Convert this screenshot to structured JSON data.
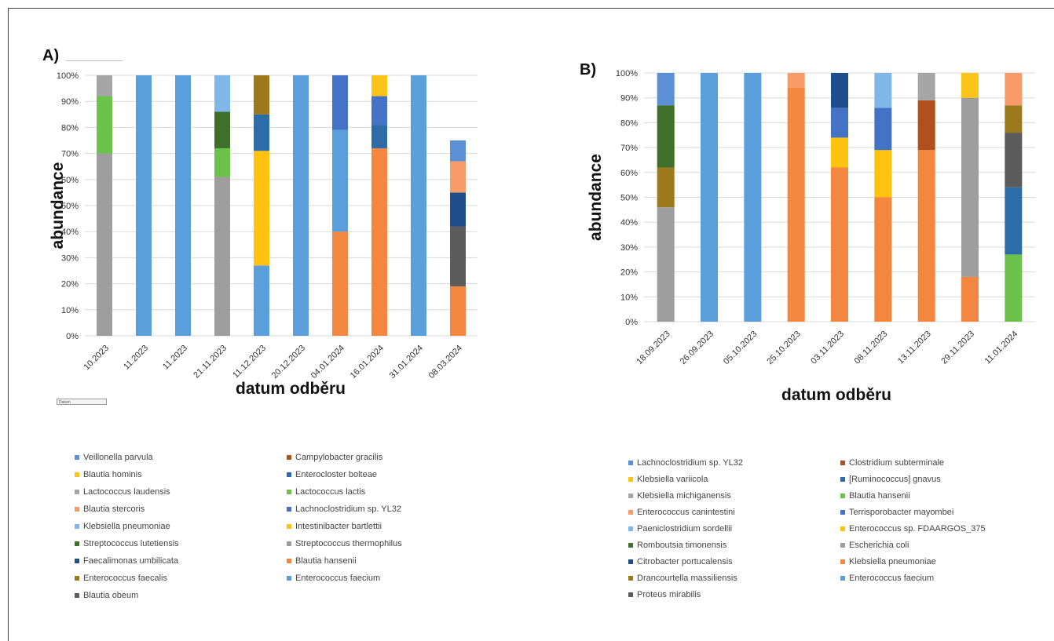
{
  "panels": {
    "a": {
      "label": "A)"
    },
    "b": {
      "label": "B)"
    }
  },
  "filter_label": "Datum",
  "chart_data": [
    {
      "type": "bar",
      "stacked": true,
      "xlabel": "datum odběru",
      "ylabel": "abundance",
      "ylim": [
        0,
        100
      ],
      "yticks": [
        "0%",
        "10%",
        "20%",
        "30%",
        "40%",
        "50%",
        "60%",
        "70%",
        "80%",
        "90%",
        "100%"
      ],
      "tick_labels": [
        "10.2023",
        "11.2023",
        "11.2023",
        "21.11.2023",
        "11.12.2023",
        "20.12.2023",
        "04.01.2024",
        "16.01.2024",
        "31.01.2024",
        "08.03.2024"
      ],
      "categories": [
        "10.2023",
        "11.2023",
        "11.2023",
        "21.11.2023",
        "11.12.2023",
        "20.12.2023",
        "04.01.2024",
        "16.01.2024",
        "31.01.2024",
        "08.03.2024"
      ],
      "series": [
        {
          "name": "Veillonella parvula",
          "color": "#5b8fd6",
          "values": [
            0,
            0,
            0,
            0,
            0,
            0,
            0,
            0,
            0,
            8
          ]
        },
        {
          "name": "Campylobacter gracilis",
          "color": "#b0501f",
          "values": [
            0,
            0,
            0,
            0,
            0,
            0,
            0,
            0,
            0,
            0
          ]
        },
        {
          "name": "Blautia hominis",
          "color": "#fcc419",
          "values": [
            0,
            0,
            0,
            0,
            0,
            0,
            0,
            8,
            0,
            0
          ]
        },
        {
          "name": "Enterocloster bolteae",
          "color": "#2c6da8",
          "values": [
            0,
            0,
            0,
            0,
            14,
            0,
            0,
            9,
            0,
            0
          ]
        },
        {
          "name": "Lactococcus laudensis",
          "color": "#a5a5a5",
          "values": [
            8,
            0,
            0,
            0,
            0,
            0,
            0,
            0,
            0,
            0
          ]
        },
        {
          "name": "Lactococcus lactis",
          "color": "#6cc24a",
          "values": [
            22,
            0,
            0,
            11,
            0,
            0,
            0,
            0,
            0,
            0
          ]
        },
        {
          "name": "Blautia stercoris",
          "color": "#f79c68",
          "values": [
            0,
            0,
            0,
            0,
            0,
            0,
            0,
            0,
            0,
            12
          ]
        },
        {
          "name": "Lachnoclostridium sp. YL32",
          "color": "#4472c4",
          "values": [
            0,
            0,
            0,
            0,
            0,
            0,
            21,
            11,
            0,
            0
          ]
        },
        {
          "name": "Klebsiella pneumoniae",
          "color": "#7fb8e8",
          "values": [
            0,
            0,
            0,
            14,
            0,
            0,
            0,
            0,
            0,
            0
          ]
        },
        {
          "name": "Intestinibacter bartlettii",
          "color": "#ffc20e",
          "values": [
            0,
            0,
            0,
            0,
            44,
            0,
            0,
            0,
            0,
            0
          ]
        },
        {
          "name": "Streptococcus lutetiensis",
          "color": "#3f6f2a",
          "values": [
            0,
            0,
            0,
            14,
            0,
            0,
            0,
            0,
            0,
            0
          ]
        },
        {
          "name": "Streptococcus thermophilus",
          "color": "#9e9e9e",
          "values": [
            70,
            0,
            0,
            61,
            0,
            0,
            0,
            0,
            0,
            0
          ]
        },
        {
          "name": "Faecalimonas umbilicata",
          "color": "#1f4e8c",
          "values": [
            0,
            0,
            0,
            0,
            0,
            0,
            0,
            0,
            0,
            13
          ]
        },
        {
          "name": "Blautia hansenii",
          "color": "#f4873f",
          "values": [
            0,
            0,
            0,
            0,
            0,
            0,
            40,
            72,
            0,
            19
          ]
        },
        {
          "name": "Enterococcus faecalis",
          "color": "#9c7a1c",
          "values": [
            0,
            0,
            0,
            0,
            15,
            0,
            0,
            0,
            0,
            0
          ]
        },
        {
          "name": "Enterococcus faecium",
          "color": "#5a9fdb",
          "values": [
            0,
            100,
            100,
            0,
            27,
            100,
            39,
            0,
            100,
            0
          ]
        },
        {
          "name": "Blautia obeum",
          "color": "#5c5c5c",
          "values": [
            0,
            0,
            0,
            0,
            0,
            0,
            0,
            0,
            0,
            23
          ]
        }
      ],
      "stack_order": [
        "Blautia hansenii",
        "Enterococcus faecium",
        "Streptococcus thermophilus",
        "Lactococcus lactis",
        "Lactococcus laudensis",
        "Intestinibacter bartlettii",
        "Campylobacter gracilis",
        "Blautia obeum",
        "Faecalimonas umbilicata",
        "Enterocloster bolteae",
        "Lachnoclostridium sp. YL32",
        "Streptococcus lutetiensis",
        "Klebsiella pneumoniae",
        "Enterococcus faecalis",
        "Blautia hominis",
        "Blautia stercoris",
        "Veillonella parvula"
      ],
      "legend": [
        "Veillonella parvula",
        "Campylobacter gracilis",
        "Blautia hominis",
        "Enterocloster bolteae",
        "Lactococcus laudensis",
        "Lactococcus lactis",
        "Blautia stercoris",
        "Lachnoclostridium sp. YL32",
        "Klebsiella pneumoniae",
        "Intestinibacter bartlettii",
        "Streptococcus lutetiensis",
        "Streptococcus thermophilus",
        "Faecalimonas umbilicata",
        "Blautia hansenii",
        "Enterococcus faecalis",
        "Enterococcus faecium",
        "Blautia obeum"
      ],
      "grid": true,
      "legend_position": "bottom"
    },
    {
      "type": "bar",
      "stacked": true,
      "xlabel": "datum odběru",
      "ylabel": "abundance",
      "ylim": [
        0,
        100
      ],
      "yticks": [
        "0%",
        "10%",
        "20%",
        "30%",
        "40%",
        "50%",
        "60%",
        "70%",
        "80%",
        "90%",
        "100%"
      ],
      "categories": [
        "18.09.2023",
        "26.09.2023",
        "05.10.2023",
        "25.10.2023",
        "03.11.2023",
        "08.11.2023",
        "13.11.2023",
        "29.11.2023",
        "11.01.2024"
      ],
      "tick_labels": [
        "18.09.2023",
        "26.09.2023",
        "05.10.2023",
        "25.10.2023",
        "03.11.2023",
        "08.11.2023",
        "13.11.2023",
        "29.11.2023",
        "11.01.2024"
      ],
      "series": [
        {
          "name": "Lachnoclostridium sp. YL32",
          "color": "#5b8fd6",
          "values": [
            13,
            0,
            0,
            0,
            0,
            0,
            0,
            0,
            0
          ]
        },
        {
          "name": "Clostridium subterminale",
          "color": "#b0501f",
          "values": [
            0,
            0,
            0,
            0,
            0,
            0,
            20,
            0,
            0
          ]
        },
        {
          "name": "Klebsiella variicola",
          "color": "#fcc419",
          "values": [
            0,
            0,
            0,
            0,
            0,
            0,
            0,
            10,
            0
          ]
        },
        {
          "name": "[Ruminococcus] gnavus",
          "color": "#2c6da8",
          "values": [
            0,
            0,
            0,
            0,
            0,
            0,
            0,
            0,
            27
          ]
        },
        {
          "name": "Klebsiella michiganensis",
          "color": "#a5a5a5",
          "values": [
            0,
            0,
            0,
            0,
            0,
            0,
            11,
            0,
            0
          ]
        },
        {
          "name": "Blautia hansenii",
          "color": "#6cc24a",
          "values": [
            0,
            0,
            0,
            0,
            0,
            0,
            0,
            0,
            27
          ]
        },
        {
          "name": "Enterococcus canintestini",
          "color": "#f79c68",
          "values": [
            0,
            0,
            0,
            6,
            0,
            0,
            0,
            0,
            13
          ]
        },
        {
          "name": "Terrisporobacter mayombei",
          "color": "#4472c4",
          "values": [
            0,
            0,
            0,
            0,
            12,
            17,
            0,
            0,
            0
          ]
        },
        {
          "name": "Paeniclostridium sordellii",
          "color": "#7fb8e8",
          "values": [
            0,
            0,
            0,
            0,
            0,
            14,
            0,
            0,
            0
          ]
        },
        {
          "name": "Enterococcus sp. FDAARGOS_375",
          "color": "#ffc20e",
          "values": [
            0,
            0,
            0,
            0,
            12,
            19,
            0,
            0,
            0
          ]
        },
        {
          "name": "Romboutsia timonensis",
          "color": "#3f6f2a",
          "values": [
            25,
            0,
            0,
            0,
            0,
            0,
            0,
            0,
            0
          ]
        },
        {
          "name": "Escherichia coli",
          "color": "#9e9e9e",
          "values": [
            46,
            0,
            0,
            0,
            0,
            0,
            0,
            72,
            0
          ]
        },
        {
          "name": "Citrobacter portucalensis",
          "color": "#1f4e8c",
          "values": [
            0,
            0,
            0,
            0,
            14,
            0,
            0,
            0,
            0
          ]
        },
        {
          "name": "Klebsiella pneumoniae",
          "color": "#f4873f",
          "values": [
            0,
            0,
            0,
            94,
            62,
            50,
            69,
            18,
            0
          ]
        },
        {
          "name": "Drancourtella massiliensis",
          "color": "#9c7a1c",
          "values": [
            16,
            0,
            0,
            0,
            0,
            0,
            0,
            0,
            11
          ]
        },
        {
          "name": "Enterococcus faecium",
          "color": "#5a9fdb",
          "values": [
            0,
            100,
            100,
            0,
            0,
            0,
            0,
            0,
            0
          ]
        },
        {
          "name": "Proteus mirabilis",
          "color": "#5c5c5c",
          "values": [
            0,
            0,
            0,
            0,
            0,
            0,
            0,
            0,
            22
          ]
        }
      ],
      "stack_order": [
        "Blautia hansenii",
        "[Ruminococcus] gnavus",
        "Klebsiella pneumoniae",
        "Enterococcus faecium",
        "Escherichia coli",
        "Proteus mirabilis",
        "Drancourtella massiliensis",
        "Romboutsia timonensis",
        "Enterococcus sp. FDAARGOS_375",
        "Klebsiella variicola",
        "Terrisporobacter mayombei",
        "Citrobacter portucalensis",
        "Paeniclostridium sordellii",
        "Clostridium subterminale",
        "Klebsiella michiganensis",
        "Lachnoclostridium sp. YL32",
        "Enterococcus canintestini"
      ],
      "legend": [
        "Lachnoclostridium sp. YL32",
        "Clostridium subterminale",
        "Klebsiella variicola",
        "[Ruminococcus] gnavus",
        "Klebsiella michiganensis",
        "Blautia hansenii",
        "Enterococcus canintestini",
        "Terrisporobacter mayombei",
        "Paeniclostridium sordellii",
        "Enterococcus sp. FDAARGOS_375",
        "Romboutsia timonensis",
        "Escherichia coli",
        "Citrobacter portucalensis",
        "Klebsiella pneumoniae",
        "Drancourtella massiliensis",
        "Enterococcus faecium",
        "Proteus mirabilis"
      ],
      "grid": true,
      "legend_position": "bottom"
    }
  ]
}
